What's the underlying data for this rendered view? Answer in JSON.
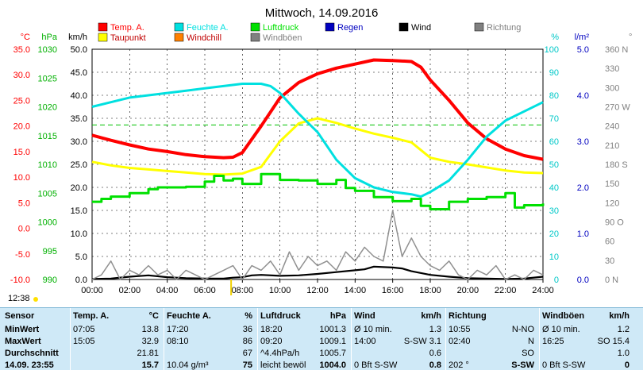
{
  "chart_data": {
    "type": "line",
    "title": "Mittwoch, 14.09.2016",
    "x_ticks": [
      "00:00",
      "02:00",
      "04:00",
      "06:00",
      "08:00",
      "10:00",
      "12:00",
      "14:00",
      "16:00",
      "18:00",
      "20:00",
      "22:00",
      "24:00"
    ],
    "xlim": [
      0,
      24
    ],
    "axes": {
      "temp": {
        "unit": "°C",
        "color": "#ff0000",
        "ticks": [
          "35.0",
          "30.0",
          "25.0",
          "20.0",
          "15.0",
          "10.0",
          "5.0",
          "0.0",
          "-5.0",
          "-10.0"
        ],
        "range": [
          -10,
          35
        ]
      },
      "hpa": {
        "unit": "hPa",
        "color": "#00b000",
        "ticks": [
          "1030",
          "1025",
          "1020",
          "1015",
          "1010",
          "1005",
          "1000",
          "995",
          "990"
        ],
        "range": [
          990,
          1030
        ]
      },
      "kmh": {
        "unit": "km/h",
        "color": "#000000",
        "ticks": [
          "50.0",
          "45.0",
          "40.0",
          "35.0",
          "30.0",
          "25.0",
          "20.0",
          "15.0",
          "10.0",
          "5.0",
          "0.0"
        ],
        "range": [
          0,
          50
        ]
      },
      "pct": {
        "unit": "%",
        "color": "#00c8c8",
        "ticks": [
          "100",
          "90",
          "80",
          "70",
          "60",
          "50",
          "40",
          "30",
          "20",
          "10",
          "0"
        ],
        "range": [
          0,
          100
        ]
      },
      "lm2": {
        "unit": "l/m²",
        "color": "#0000c0",
        "ticks": [
          "5.0",
          "4.0",
          "3.0",
          "2.0",
          "1.0",
          "0.0"
        ],
        "range": [
          0,
          5
        ]
      },
      "dir": {
        "unit": "°",
        "color": "#808080",
        "ticks": [
          "360 N",
          "330",
          "300",
          "270 W",
          "240",
          "210",
          "180 S",
          "150",
          "120",
          "90 O",
          "60",
          "30",
          "0 N"
        ],
        "range": [
          0,
          360
        ]
      }
    },
    "legend": [
      {
        "name": "Temp. A.",
        "color": "#ff0000"
      },
      {
        "name": "Feuchte A.",
        "color": "#00e0e0"
      },
      {
        "name": "Luftdruck",
        "color": "#00e000"
      },
      {
        "name": "Regen",
        "color": "#0000c0"
      },
      {
        "name": "Wind",
        "color": "#000000"
      },
      {
        "name": "Richtung",
        "color": "#808080"
      },
      {
        "name": "Taupunkt",
        "color": "#ffff00"
      },
      {
        "name": "Windchill",
        "color": "#ff8000"
      },
      {
        "name": "Windböen",
        "color": "#808080"
      }
    ],
    "series": [
      {
        "name": "Temp. A.",
        "axis": "temp",
        "color": "#ff0000",
        "x": [
          0,
          1,
          2,
          3,
          4,
          5,
          6,
          7,
          7.5,
          8,
          9,
          10,
          11,
          12,
          13,
          14,
          15,
          16,
          17,
          17.5,
          18,
          19,
          20,
          21,
          22,
          23,
          24
        ],
        "values": [
          18.2,
          17.2,
          16.3,
          15.5,
          15.0,
          14.4,
          14.0,
          13.8,
          13.9,
          14.8,
          20.0,
          25.5,
          28.5,
          30.2,
          31.3,
          32.1,
          32.9,
          32.8,
          32.6,
          31.5,
          29.0,
          25.0,
          20.6,
          17.5,
          15.5,
          14.2,
          13.5
        ]
      },
      {
        "name": "Taupunkt",
        "axis": "temp",
        "color": "#ffff00",
        "x": [
          0,
          1,
          2,
          3,
          4,
          5,
          6,
          7,
          8,
          9,
          10,
          11,
          12,
          13,
          14,
          15,
          16,
          17,
          18,
          19,
          20,
          21,
          22,
          23,
          24
        ],
        "values": [
          13.0,
          12.3,
          11.8,
          11.5,
          11.2,
          10.9,
          10.6,
          10.5,
          10.7,
          12.0,
          17.0,
          20.5,
          21.5,
          20.6,
          19.5,
          18.5,
          17.7,
          16.8,
          13.8,
          13.0,
          12.5,
          11.9,
          11.3,
          10.9,
          10.8
        ]
      },
      {
        "name": "Feuchte A.",
        "axis": "pct",
        "color": "#00e0e0",
        "x": [
          0,
          1,
          2,
          3,
          4,
          5,
          6,
          7,
          8,
          9,
          9.5,
          10,
          11,
          12,
          13,
          14,
          15,
          16,
          17,
          17.5,
          18,
          19,
          20,
          21,
          22,
          23,
          24
        ],
        "values": [
          75,
          77,
          79,
          80,
          81,
          82,
          83,
          84,
          85,
          85,
          84,
          81,
          72,
          64,
          52,
          44,
          40,
          38,
          37,
          36,
          38,
          43,
          52,
          62,
          69,
          73,
          77
        ]
      },
      {
        "name": "Luftdruck",
        "axis": "hpa",
        "color": "#00e000",
        "x": [
          0,
          0.5,
          1,
          2,
          3,
          3.5,
          4,
          5,
          6,
          6.5,
          7,
          7.5,
          8,
          9,
          10,
          11,
          12,
          13,
          13.5,
          14,
          15,
          16,
          17,
          17.5,
          18,
          19,
          20,
          21,
          22,
          22.5,
          23,
          24
        ],
        "values": [
          1003.5,
          1004.0,
          1004.4,
          1005.0,
          1005.7,
          1006.0,
          1006.0,
          1006.1,
          1007.0,
          1008.0,
          1007.2,
          1007.5,
          1006.6,
          1008.3,
          1007.3,
          1007.2,
          1006.6,
          1007.3,
          1005.9,
          1005.4,
          1004.3,
          1003.6,
          1004.0,
          1002.8,
          1002.2,
          1003.5,
          1004.0,
          1004.3,
          1005.0,
          1002.5,
          1002.9,
          1003.2
        ]
      },
      {
        "name": "Wind",
        "axis": "kmh",
        "color": "#000000",
        "x": [
          0,
          1,
          2,
          3,
          4,
          5,
          6,
          7,
          7.5,
          8,
          8.5,
          9,
          10,
          11,
          12,
          13,
          14,
          14.5,
          15,
          16,
          16.5,
          17,
          18,
          19,
          20,
          21,
          22,
          23,
          24
        ],
        "values": [
          0.1,
          0.2,
          0.6,
          0.9,
          0.5,
          0.3,
          0.2,
          0.2,
          0.4,
          0.5,
          0.9,
          1.0,
          0.8,
          0.9,
          1.2,
          1.6,
          2.0,
          2.2,
          2.8,
          2.6,
          2.4,
          1.8,
          1.0,
          0.6,
          0.3,
          0.2,
          0.1,
          0.2,
          0.6
        ]
      },
      {
        "name": "Windböen",
        "axis": "kmh",
        "color": "#909090",
        "x": [
          0,
          0.5,
          1,
          1.5,
          2,
          2.5,
          3,
          3.5,
          4,
          4.5,
          5,
          5.5,
          6,
          6.5,
          7,
          7.5,
          8,
          8.5,
          9,
          9.5,
          10,
          10.5,
          11,
          11.5,
          12,
          12.5,
          13,
          13.5,
          14,
          14.5,
          15,
          15.5,
          16,
          16.5,
          17,
          17.5,
          18,
          18.5,
          19,
          19.5,
          20,
          20.5,
          21,
          21.5,
          22,
          22.5,
          23,
          23.5,
          24
        ],
        "values": [
          0,
          1,
          4,
          0,
          2,
          1,
          3,
          1,
          2,
          0,
          2,
          1,
          0,
          1,
          2,
          3,
          0,
          3,
          2,
          4,
          1,
          6,
          2,
          5,
          3,
          4,
          2,
          6,
          4,
          7,
          5,
          4,
          15,
          5,
          9,
          5,
          3,
          2,
          4,
          1,
          0,
          2,
          1,
          3,
          0,
          1,
          0,
          2,
          1
        ]
      }
    ],
    "reference_line": {
      "axis": "temp",
      "value": 20.2,
      "color": "#00c000"
    }
  },
  "current_time": "12:38",
  "table": {
    "headers": [
      {
        "label": "Sensor",
        "unit": ""
      },
      {
        "label": "Temp. A.",
        "unit": "°C"
      },
      {
        "label": "Feuchte A.",
        "unit": "%"
      },
      {
        "label": "Luftdruck",
        "unit": "hPa"
      },
      {
        "label": "Wind",
        "unit": "km/h"
      },
      {
        "label": "Richtung",
        "unit": ""
      },
      {
        "label": "Windböen",
        "unit": "km/h"
      }
    ],
    "rows": [
      {
        "label": "MinWert",
        "cells": [
          [
            "07:05",
            "13.8"
          ],
          [
            "17:20",
            "36"
          ],
          [
            "18:20",
            "1001.3"
          ],
          [
            "Ø 10 min.",
            "1.3"
          ],
          [
            "10:55",
            "N-NO"
          ],
          [
            "Ø 10 min.",
            "1.2"
          ]
        ]
      },
      {
        "label": "MaxWert",
        "cells": [
          [
            "15:05",
            "32.9"
          ],
          [
            "08:10",
            "86"
          ],
          [
            "09:20",
            "1009.1"
          ],
          [
            "14:00",
            "S-SW 3.1"
          ],
          [
            "02:40",
            "N"
          ],
          [
            "16:25",
            "SO 15.4"
          ]
        ]
      },
      {
        "label": "Durchschnitt",
        "cells": [
          [
            "",
            "21.81"
          ],
          [
            "",
            "67"
          ],
          [
            "^4.4hPa/h",
            "1005.7"
          ],
          [
            "",
            "0.6"
          ],
          [
            "",
            "SO"
          ],
          [
            "",
            "1.0"
          ]
        ]
      },
      {
        "label": "14.09. 23:55",
        "cells": [
          [
            "",
            "15.7"
          ],
          [
            "10.04 g/m³",
            "75"
          ],
          [
            "leicht bewöl",
            "1004.0"
          ],
          [
            "0 Bft S-SW",
            "0.8"
          ],
          [
            "202 °",
            "S-SW"
          ],
          [
            "0 Bft S-SW",
            "0"
          ]
        ]
      }
    ]
  }
}
